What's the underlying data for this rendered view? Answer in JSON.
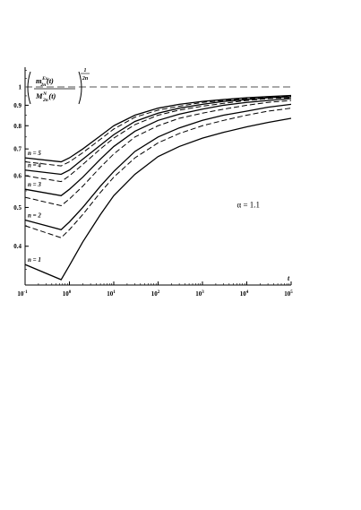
{
  "chart_data": {
    "type": "line",
    "x_scale": "log",
    "y_scale": "log",
    "xlim": [
      0.1,
      100000
    ],
    "ylim": [
      0.32,
      1.12
    ],
    "x_ticks": [
      0.1,
      1,
      10,
      100,
      1000,
      10000,
      100000
    ],
    "x_tick_base": "10",
    "x_tick_exponents": [
      "-1",
      "0",
      "1",
      "2",
      "3",
      "4",
      "5"
    ],
    "y_ticks": [
      {
        "value": 1.0,
        "label": "1"
      },
      {
        "value": 0.9,
        "label": "0.9"
      },
      {
        "value": 0.8,
        "label": "0.8"
      },
      {
        "value": 0.7,
        "label": "0.7"
      },
      {
        "value": 0.6,
        "label": "0.6"
      },
      {
        "value": 0.5,
        "label": "0.5"
      },
      {
        "value": 0.4,
        "label": "0.4"
      }
    ],
    "xlabel": "t",
    "ylabel": {
      "num_base": "m",
      "num_sub": "2n",
      "num_sup": "Ex",
      "num_arg": "(t)",
      "den_base": "M",
      "den_sub": "2n",
      "den_sup": "N",
      "den_arg": "(t)",
      "exp_num": "1",
      "exp_den": "2n"
    },
    "annotation": "α = 1.1",
    "reference_line": {
      "y": 1.0,
      "style": "dashed"
    },
    "grid": false,
    "series": [
      {
        "name": "n = 1",
        "style": "solid",
        "x": [
          0.1,
          0.65,
          1,
          2,
          5,
          10,
          30,
          100,
          300,
          1000,
          3000,
          10000,
          30000,
          100000
        ],
        "y": [
          0.36,
          0.33,
          0.358,
          0.41,
          0.48,
          0.535,
          0.605,
          0.67,
          0.71,
          0.745,
          0.77,
          0.795,
          0.815,
          0.835
        ]
      },
      {
        "name": "",
        "style": "dashed",
        "x": [
          0.1,
          0.65,
          1,
          2,
          5,
          10,
          30,
          100,
          300,
          1000,
          3000,
          10000,
          30000,
          100000
        ],
        "y": [
          0.45,
          0.42,
          0.44,
          0.48,
          0.545,
          0.595,
          0.665,
          0.725,
          0.765,
          0.8,
          0.825,
          0.85,
          0.87,
          0.885
        ]
      },
      {
        "name": "n = 2",
        "style": "solid",
        "x": [
          0.1,
          0.65,
          1,
          2,
          5,
          10,
          30,
          100,
          300,
          1000,
          3000,
          10000,
          30000,
          100000
        ],
        "y": [
          0.465,
          0.44,
          0.46,
          0.5,
          0.565,
          0.615,
          0.69,
          0.75,
          0.79,
          0.825,
          0.85,
          0.87,
          0.89,
          0.905
        ]
      },
      {
        "name": "",
        "style": "dashed",
        "x": [
          0.1,
          0.65,
          1,
          2,
          5,
          10,
          30,
          100,
          300,
          1000,
          3000,
          10000,
          30000,
          100000
        ],
        "y": [
          0.53,
          0.505,
          0.525,
          0.565,
          0.63,
          0.68,
          0.75,
          0.8,
          0.835,
          0.86,
          0.88,
          0.9,
          0.915,
          0.925
        ]
      },
      {
        "name": "n = 3",
        "style": "solid",
        "x": [
          0.1,
          0.65,
          1,
          2,
          5,
          10,
          30,
          100,
          300,
          1000,
          3000,
          10000,
          30000,
          100000
        ],
        "y": [
          0.555,
          0.535,
          0.555,
          0.595,
          0.66,
          0.71,
          0.775,
          0.825,
          0.855,
          0.88,
          0.9,
          0.915,
          0.925,
          0.935
        ]
      },
      {
        "name": "",
        "style": "dashed",
        "x": [
          0.1,
          0.65,
          1,
          2,
          5,
          10,
          30,
          100,
          300,
          1000,
          3000,
          10000,
          30000,
          100000
        ],
        "y": [
          0.6,
          0.58,
          0.6,
          0.64,
          0.7,
          0.745,
          0.805,
          0.85,
          0.875,
          0.895,
          0.91,
          0.925,
          0.935,
          0.94
        ]
      },
      {
        "name": "n = 4",
        "style": "solid",
        "x": [
          0.1,
          0.65,
          1,
          2,
          5,
          10,
          30,
          100,
          300,
          1000,
          3000,
          10000,
          30000,
          100000
        ],
        "y": [
          0.62,
          0.605,
          0.62,
          0.66,
          0.715,
          0.76,
          0.82,
          0.86,
          0.885,
          0.905,
          0.92,
          0.93,
          0.94,
          0.945
        ]
      },
      {
        "name": "",
        "style": "dashed",
        "x": [
          0.1,
          0.65,
          1,
          2,
          5,
          10,
          30,
          100,
          300,
          1000,
          3000,
          10000,
          30000,
          100000
        ],
        "y": [
          0.65,
          0.635,
          0.65,
          0.685,
          0.74,
          0.785,
          0.84,
          0.875,
          0.895,
          0.915,
          0.925,
          0.935,
          0.942,
          0.948
        ]
      },
      {
        "name": "n = 5",
        "style": "solid",
        "x": [
          0.1,
          0.65,
          1,
          2,
          5,
          10,
          30,
          100,
          300,
          1000,
          3000,
          10000,
          30000,
          100000
        ],
        "y": [
          0.665,
          0.65,
          0.665,
          0.7,
          0.755,
          0.8,
          0.85,
          0.885,
          0.905,
          0.92,
          0.93,
          0.94,
          0.946,
          0.952
        ]
      }
    ]
  }
}
